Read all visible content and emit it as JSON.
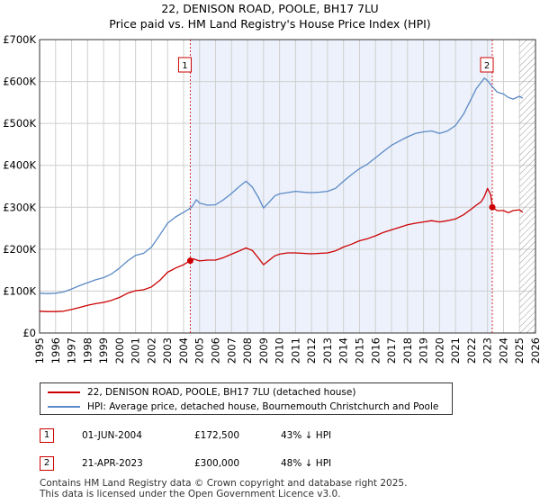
{
  "chart_data": {
    "type": "line",
    "title": "22, DENISON ROAD, POOLE, BH17 7LU",
    "subtitle": "Price paid vs. HM Land Registry's House Price Index (HPI)",
    "xlabel": "",
    "ylabel": "",
    "xlim": [
      1995,
      2026
    ],
    "ylim": [
      0,
      700000
    ],
    "x_ticks": [
      1995,
      1996,
      1997,
      1998,
      1999,
      2000,
      2001,
      2002,
      2003,
      2004,
      2005,
      2006,
      2007,
      2008,
      2009,
      2010,
      2011,
      2012,
      2013,
      2014,
      2015,
      2016,
      2017,
      2018,
      2019,
      2020,
      2021,
      2022,
      2023,
      2024,
      2025,
      2026
    ],
    "y_ticks": [
      {
        "value": 0,
        "label": "£0"
      },
      {
        "value": 100000,
        "label": "£100K"
      },
      {
        "value": 200000,
        "label": "£200K"
      },
      {
        "value": 300000,
        "label": "£300K"
      },
      {
        "value": 400000,
        "label": "£400K"
      },
      {
        "value": 500000,
        "label": "£500K"
      },
      {
        "value": 600000,
        "label": "£600K"
      },
      {
        "value": 700000,
        "label": "£700K"
      }
    ],
    "grid": true,
    "owned_span": [
      2004.42,
      2023.3
    ],
    "future_from": 2025.0,
    "series": [
      {
        "name": "22, DENISON ROAD, POOLE, BH17 7LU (detached house)",
        "color": "#cc0000",
        "x": [
          1995,
          1995.5,
          1996,
          1996.5,
          1997,
          1997.5,
          1998,
          1998.5,
          1999,
          1999.5,
          2000,
          2000.5,
          2001,
          2001.5,
          2002,
          2002.5,
          2003,
          2003.5,
          2004,
          2004.42,
          2004.6,
          2005,
          2005.5,
          2006,
          2006.5,
          2007,
          2007.5,
          2007.9,
          2008.3,
          2008.7,
          2009,
          2009.3,
          2009.7,
          2010,
          2010.5,
          2011,
          2011.5,
          2012,
          2012.5,
          2013,
          2013.5,
          2014,
          2014.5,
          2015,
          2015.5,
          2016,
          2016.5,
          2017,
          2017.5,
          2018,
          2018.5,
          2019,
          2019.5,
          2020,
          2020.5,
          2021,
          2021.5,
          2022,
          2022.3,
          2022.6,
          2022.8,
          2023.0,
          2023.2,
          2023.3,
          2023.6,
          2024,
          2024.3,
          2024.6,
          2025,
          2025.2
        ],
        "values": [
          52000,
          51000,
          51000,
          52000,
          56000,
          61000,
          66000,
          70000,
          73000,
          78000,
          85000,
          95000,
          101000,
          103000,
          110000,
          125000,
          145000,
          155000,
          163000,
          172500,
          177000,
          172000,
          174000,
          174000,
          180000,
          188000,
          196000,
          203000,
          197000,
          178000,
          163000,
          172000,
          184000,
          188000,
          191000,
          191000,
          190000,
          189000,
          190000,
          191000,
          196000,
          205000,
          212000,
          220000,
          225000,
          232000,
          240000,
          246000,
          252000,
          258000,
          262000,
          265000,
          268000,
          265000,
          268000,
          272000,
          282000,
          296000,
          305000,
          313000,
          325000,
          345000,
          330000,
          300000,
          292000,
          292000,
          287000,
          292000,
          294000,
          288000
        ]
      },
      {
        "name": "HPI: Average price, detached house, Bournemouth Christchurch and Poole",
        "color": "#5b8ac6",
        "x": [
          1995,
          1995.5,
          1996,
          1996.5,
          1997,
          1997.5,
          1998,
          1998.5,
          1999,
          1999.5,
          2000,
          2000.5,
          2001,
          2001.5,
          2002,
          2002.5,
          2003,
          2003.5,
          2004,
          2004.5,
          2004.8,
          2005,
          2005.5,
          2006,
          2006.5,
          2007,
          2007.5,
          2007.9,
          2008.3,
          2008.7,
          2009,
          2009.3,
          2009.7,
          2010,
          2010.5,
          2011,
          2011.5,
          2012,
          2012.5,
          2013,
          2013.5,
          2014,
          2014.5,
          2015,
          2015.5,
          2016,
          2016.5,
          2017,
          2017.5,
          2018,
          2018.5,
          2019,
          2019.5,
          2020,
          2020.5,
          2021,
          2021.5,
          2022,
          2022.3,
          2022.6,
          2022.8,
          2023.0,
          2023.3,
          2023.6,
          2024,
          2024.3,
          2024.6,
          2025,
          2025.2
        ],
        "values": [
          95000,
          94000,
          95000,
          98000,
          105000,
          113000,
          120000,
          127000,
          132000,
          141000,
          155000,
          172000,
          185000,
          190000,
          205000,
          233000,
          262000,
          277000,
          288000,
          300000,
          318000,
          310000,
          305000,
          306000,
          318000,
          333000,
          350000,
          362000,
          348000,
          322000,
          298000,
          310000,
          327000,
          332000,
          335000,
          338000,
          336000,
          335000,
          336000,
          338000,
          345000,
          362000,
          378000,
          392000,
          403000,
          418000,
          433000,
          448000,
          458000,
          468000,
          476000,
          480000,
          482000,
          476000,
          482000,
          495000,
          522000,
          560000,
          583000,
          598000,
          608000,
          602000,
          588000,
          575000,
          570000,
          562000,
          558000,
          565000,
          560000
        ]
      }
    ],
    "sales": [
      {
        "id": "1",
        "x": 2004.42,
        "price": 172500,
        "date": "01-JUN-2004",
        "price_label": "£172,500",
        "hpi_label": "43% ↓ HPI"
      },
      {
        "id": "2",
        "x": 2023.3,
        "price": 300000,
        "date": "21-APR-2023",
        "price_label": "£300,000",
        "hpi_label": "48% ↓ HPI"
      }
    ]
  },
  "footer": {
    "line1": "Contains HM Land Registry data © Crown copyright and database right 2025.",
    "line2": "This data is licensed under the Open Government Licence v3.0."
  },
  "colors": {
    "red": "#cc0000",
    "blue": "#5b8ac6",
    "grid": "#cfcfcf",
    "shade": "#dde6f7"
  }
}
